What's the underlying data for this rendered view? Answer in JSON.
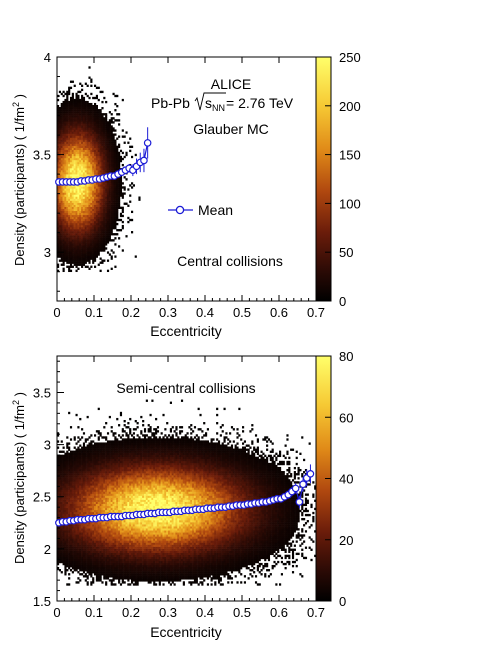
{
  "chart_data": [
    {
      "type": "heatmap",
      "panel": "top",
      "xlabel": "Eccentricity",
      "ylabel": "Density (participants) ( 1/fm",
      "ylabel_sup": "2",
      "ylabel_close": " )",
      "xlim": [
        0,
        0.7
      ],
      "ylim": [
        2.75,
        4.0
      ],
      "xticks": [
        0,
        0.1,
        0.2,
        0.3,
        0.4,
        0.5,
        0.6,
        0.7
      ],
      "xtick_labels": [
        "0",
        "0.1",
        "0.2",
        "0.3",
        "0.4",
        "0.5",
        "0.6",
        "0.7"
      ],
      "yticks": [
        3,
        3.5,
        4
      ],
      "ytick_labels": [
        "3",
        "3.5",
        "4"
      ],
      "colorbar": {
        "min": 0,
        "max": 250,
        "ticks": [
          0,
          50,
          100,
          150,
          200,
          250
        ],
        "tick_labels": [
          "0",
          "50",
          "100",
          "150",
          "200",
          "250"
        ]
      },
      "density": {
        "x_center": 0.055,
        "x_sigma": 0.045,
        "y_center": 3.36,
        "y_sigma": 0.16,
        "peak": 250,
        "x_max": 0.27,
        "y_range": [
          2.9,
          4.0
        ]
      },
      "annotations": [
        "ALICE",
        "Pb-Pb",
        "s",
        "NN",
        " = 2.76 TeV",
        "Glauber MC",
        "Central collisions"
      ],
      "legend": {
        "label": "Mean",
        "position": "center-right"
      },
      "mean_series": {
        "name": "Mean",
        "x": [
          0.005,
          0.015,
          0.025,
          0.035,
          0.045,
          0.055,
          0.065,
          0.075,
          0.085,
          0.095,
          0.105,
          0.115,
          0.125,
          0.135,
          0.145,
          0.155,
          0.165,
          0.175,
          0.185,
          0.195,
          0.205,
          0.215,
          0.225,
          0.235,
          0.245
        ],
        "y": [
          3.36,
          3.36,
          3.36,
          3.36,
          3.36,
          3.36,
          3.365,
          3.365,
          3.37,
          3.37,
          3.375,
          3.375,
          3.38,
          3.385,
          3.39,
          3.39,
          3.4,
          3.41,
          3.42,
          3.43,
          3.42,
          3.44,
          3.46,
          3.47,
          3.56
        ],
        "yerr": [
          0.005,
          0.005,
          0.005,
          0.005,
          0.005,
          0.005,
          0.005,
          0.005,
          0.005,
          0.005,
          0.006,
          0.006,
          0.007,
          0.008,
          0.009,
          0.01,
          0.012,
          0.015,
          0.018,
          0.022,
          0.03,
          0.04,
          0.05,
          0.06,
          0.08
        ]
      }
    },
    {
      "type": "heatmap",
      "panel": "bottom",
      "xlabel": "Eccentricity",
      "ylabel": "Density (participants) ( 1/fm",
      "ylabel_sup": "2",
      "ylabel_close": " )",
      "xlim": [
        0,
        0.7
      ],
      "ylim": [
        1.5,
        3.85
      ],
      "xticks": [
        0,
        0.1,
        0.2,
        0.3,
        0.4,
        0.5,
        0.6,
        0.7
      ],
      "xtick_labels": [
        "0",
        "0.1",
        "0.2",
        "0.3",
        "0.4",
        "0.5",
        "0.6",
        "0.7"
      ],
      "yticks": [
        1.5,
        2,
        2.5,
        3,
        3.5
      ],
      "ytick_labels": [
        "1.5",
        "2",
        "2.5",
        "3",
        "3.5"
      ],
      "colorbar": {
        "min": 0,
        "max": 80,
        "ticks": [
          0,
          20,
          40,
          60,
          80
        ],
        "tick_labels": [
          "0",
          "20",
          "40",
          "60",
          "80"
        ]
      },
      "density": {
        "x_center": 0.27,
        "x_sigma": 0.15,
        "y_center": 2.38,
        "y_sigma": 0.26,
        "peak": 80,
        "x_max": 0.7,
        "y_range": [
          1.65,
          3.45
        ]
      },
      "annotations": [
        "Semi-central collisions"
      ],
      "mean_series": {
        "name": "Mean",
        "x": [
          0.005,
          0.015,
          0.025,
          0.035,
          0.045,
          0.055,
          0.065,
          0.075,
          0.085,
          0.095,
          0.105,
          0.115,
          0.125,
          0.135,
          0.145,
          0.155,
          0.165,
          0.175,
          0.185,
          0.195,
          0.205,
          0.215,
          0.225,
          0.235,
          0.245,
          0.255,
          0.265,
          0.275,
          0.285,
          0.295,
          0.305,
          0.315,
          0.325,
          0.335,
          0.345,
          0.355,
          0.365,
          0.375,
          0.385,
          0.395,
          0.405,
          0.415,
          0.425,
          0.435,
          0.445,
          0.455,
          0.465,
          0.475,
          0.485,
          0.495,
          0.505,
          0.515,
          0.525,
          0.535,
          0.545,
          0.555,
          0.565,
          0.575,
          0.585,
          0.595,
          0.605,
          0.615,
          0.625,
          0.635,
          0.645,
          0.655,
          0.665,
          0.675,
          0.685
        ],
        "y": [
          2.25,
          2.26,
          2.26,
          2.27,
          2.27,
          2.28,
          2.28,
          2.28,
          2.29,
          2.29,
          2.29,
          2.3,
          2.3,
          2.3,
          2.31,
          2.31,
          2.31,
          2.31,
          2.32,
          2.32,
          2.32,
          2.33,
          2.33,
          2.33,
          2.34,
          2.34,
          2.34,
          2.35,
          2.35,
          2.35,
          2.35,
          2.36,
          2.36,
          2.36,
          2.37,
          2.37,
          2.37,
          2.38,
          2.38,
          2.38,
          2.39,
          2.39,
          2.39,
          2.4,
          2.4,
          2.4,
          2.41,
          2.41,
          2.42,
          2.42,
          2.42,
          2.43,
          2.43,
          2.44,
          2.44,
          2.45,
          2.45,
          2.46,
          2.47,
          2.48,
          2.48,
          2.5,
          2.52,
          2.55,
          2.58,
          2.45,
          2.62,
          2.68,
          2.72
        ],
        "yerr": [
          0.02,
          0.015,
          0.012,
          0.01,
          0.008,
          0.006,
          0.005,
          0.005,
          0.004,
          0.004,
          0.004,
          0.004,
          0.004,
          0.004,
          0.004,
          0.004,
          0.004,
          0.004,
          0.004,
          0.004,
          0.004,
          0.004,
          0.004,
          0.004,
          0.004,
          0.004,
          0.004,
          0.004,
          0.004,
          0.004,
          0.004,
          0.004,
          0.004,
          0.004,
          0.004,
          0.004,
          0.004,
          0.004,
          0.004,
          0.004,
          0.005,
          0.005,
          0.005,
          0.005,
          0.006,
          0.006,
          0.006,
          0.007,
          0.008,
          0.008,
          0.009,
          0.01,
          0.011,
          0.012,
          0.014,
          0.016,
          0.018,
          0.02,
          0.022,
          0.025,
          0.03,
          0.035,
          0.04,
          0.045,
          0.05,
          0.06,
          0.07,
          0.08,
          0.09
        ]
      }
    }
  ]
}
